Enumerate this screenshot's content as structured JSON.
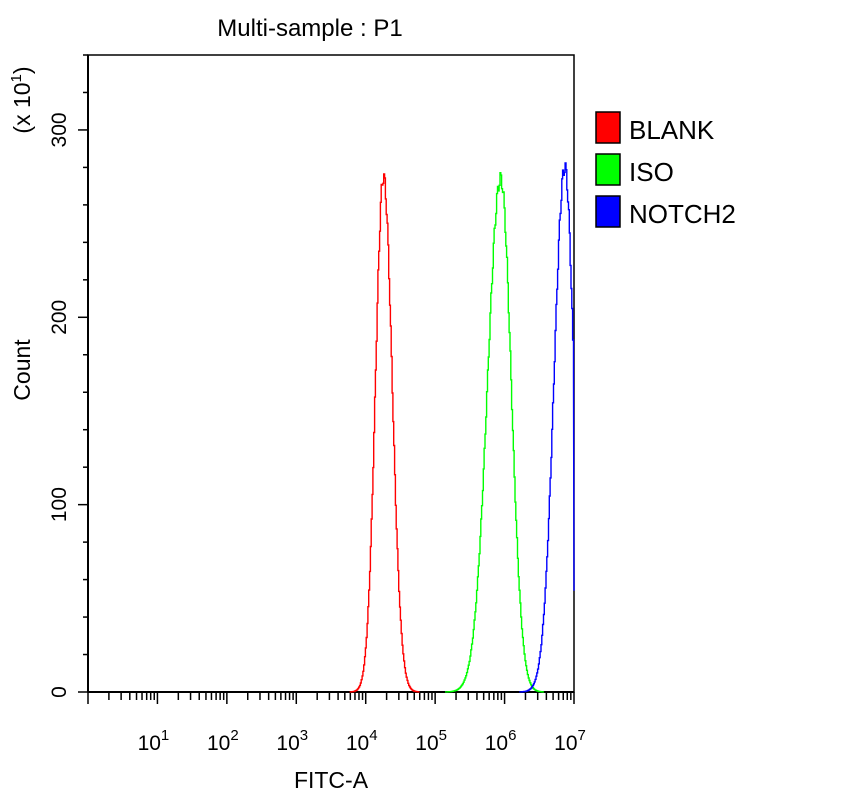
{
  "chart_data": {
    "type": "line",
    "title": "Multi-sample : P1",
    "xlabel": "FITC-A",
    "ylabel": "Count",
    "y_multiplier": "(x 10",
    "y_multiplier_exp": "1",
    "y_multiplier_close": ")",
    "x_scale": "log",
    "xlim": [
      1,
      10000000
    ],
    "ylim": [
      0,
      340
    ],
    "x_ticks": [
      {
        "value": 10,
        "base": "10",
        "exp": "1"
      },
      {
        "value": 100,
        "base": "10",
        "exp": "2"
      },
      {
        "value": 1000,
        "base": "10",
        "exp": "3"
      },
      {
        "value": 10000,
        "base": "10",
        "exp": "4"
      },
      {
        "value": 100000,
        "base": "10",
        "exp": "5"
      },
      {
        "value": 1000000,
        "base": "10",
        "exp": "6"
      },
      {
        "value": 10000000,
        "base": "10",
        "exp": "7"
      }
    ],
    "y_ticks": [
      {
        "value": 0,
        "label": "0"
      },
      {
        "value": 100,
        "label": "100"
      },
      {
        "value": 200,
        "label": "200"
      },
      {
        "value": 300,
        "label": "300"
      }
    ],
    "grid": false,
    "legend_position": "top-right",
    "series": [
      {
        "name": "BLANK",
        "color": "#ff0000",
        "peak_x": 17800,
        "peak_y": 275,
        "spread_left_decades": 0.115,
        "spread_right_decades": 0.125
      },
      {
        "name": "ISO",
        "color": "#00ff00",
        "peak_x": 870000,
        "peak_y": 274,
        "spread_left_decades": 0.19,
        "spread_right_decades": 0.15
      },
      {
        "name": "NOTCH2",
        "color": "#0000ff",
        "peak_x": 7300000,
        "peak_y": 280,
        "spread_left_decades": 0.155,
        "spread_right_decades": 0.13
      }
    ]
  }
}
